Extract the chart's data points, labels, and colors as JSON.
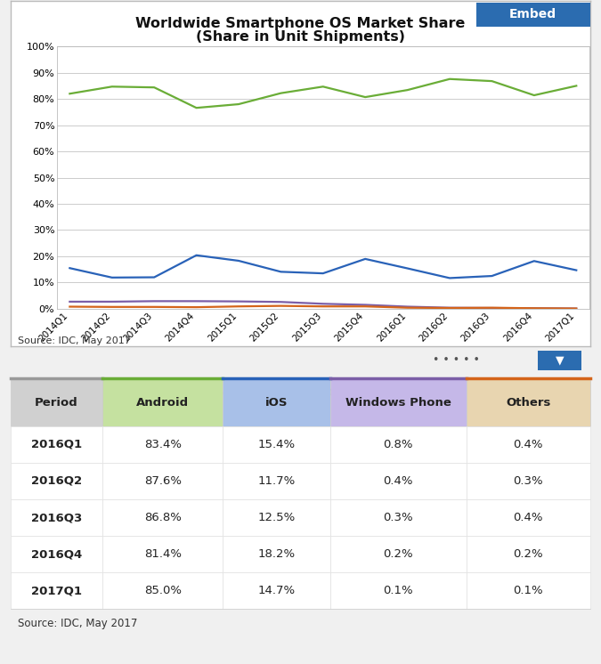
{
  "title_line1": "Worldwide Smartphone OS Market Share",
  "title_line2": "(Share in Unit Shipments)",
  "x_labels": [
    "2014Q1",
    "2014Q2",
    "2014Q3",
    "2014Q4",
    "2015Q1",
    "2015Q2",
    "2015Q3",
    "2015Q4",
    "2016Q1",
    "2016Q2",
    "2016Q3",
    "2016Q4",
    "2017Q1"
  ],
  "android": [
    82.0,
    84.7,
    84.4,
    76.6,
    78.0,
    82.2,
    84.7,
    80.7,
    83.4,
    87.6,
    86.8,
    81.4,
    85.0
  ],
  "ios": [
    15.5,
    11.9,
    12.0,
    20.4,
    18.3,
    14.1,
    13.5,
    19.0,
    15.4,
    11.7,
    12.5,
    18.2,
    14.7
  ],
  "windows_phone": [
    2.7,
    2.7,
    2.9,
    2.9,
    2.8,
    2.6,
    1.9,
    1.5,
    0.8,
    0.4,
    0.3,
    0.2,
    0.1
  ],
  "others": [
    0.8,
    0.7,
    0.7,
    0.6,
    0.9,
    1.1,
    0.9,
    0.9,
    0.4,
    0.3,
    0.4,
    0.2,
    0.1
  ],
  "android_color": "#6AAD37",
  "ios_color": "#2962B8",
  "windows_phone_color": "#7B5EA7",
  "others_color": "#D4641A",
  "chart_bg": "#FFFFFF",
  "outer_bg": "#F0F0F0",
  "chart_border": "#BBBBBB",
  "embed_bg": "#2B6CB0",
  "embed_text": "Embed",
  "source_text": "Source: IDC, May 2017",
  "ylim": [
    0,
    100
  ],
  "yticks": [
    0,
    10,
    20,
    30,
    40,
    50,
    60,
    70,
    80,
    90,
    100
  ],
  "ytick_labels": [
    "0%",
    "10%",
    "20%",
    "30%",
    "40%",
    "50%",
    "60%",
    "70%",
    "80%",
    "90%",
    "100%"
  ],
  "table_periods": [
    "2016Q1",
    "2016Q2",
    "2016Q3",
    "2016Q4",
    "2017Q1"
  ],
  "table_android": [
    "83.4%",
    "87.6%",
    "86.8%",
    "81.4%",
    "85.0%"
  ],
  "table_ios": [
    "15.4%",
    "11.7%",
    "12.5%",
    "18.2%",
    "14.7%"
  ],
  "table_windows": [
    "0.8%",
    "0.4%",
    "0.3%",
    "0.2%",
    "0.1%"
  ],
  "table_others": [
    "0.4%",
    "0.3%",
    "0.4%",
    "0.2%",
    "0.1%"
  ],
  "col_header_android_bg": "#C5E1A0",
  "col_header_ios_bg": "#A8C0E8",
  "col_header_windows_bg": "#C5B8E8",
  "col_header_others_bg": "#E8D5B0",
  "col_header_period_bg": "#D0D0D0",
  "table_row_bg1": "#FFFFFF",
  "table_row_bg2": "#F5F5F5",
  "dots_color": "#555555",
  "arrow_color": "#2B6CB0",
  "grid_color": "#CCCCCC",
  "legend_labels": [
    "Android",
    "iOS",
    "Windows Phone",
    "Others"
  ]
}
